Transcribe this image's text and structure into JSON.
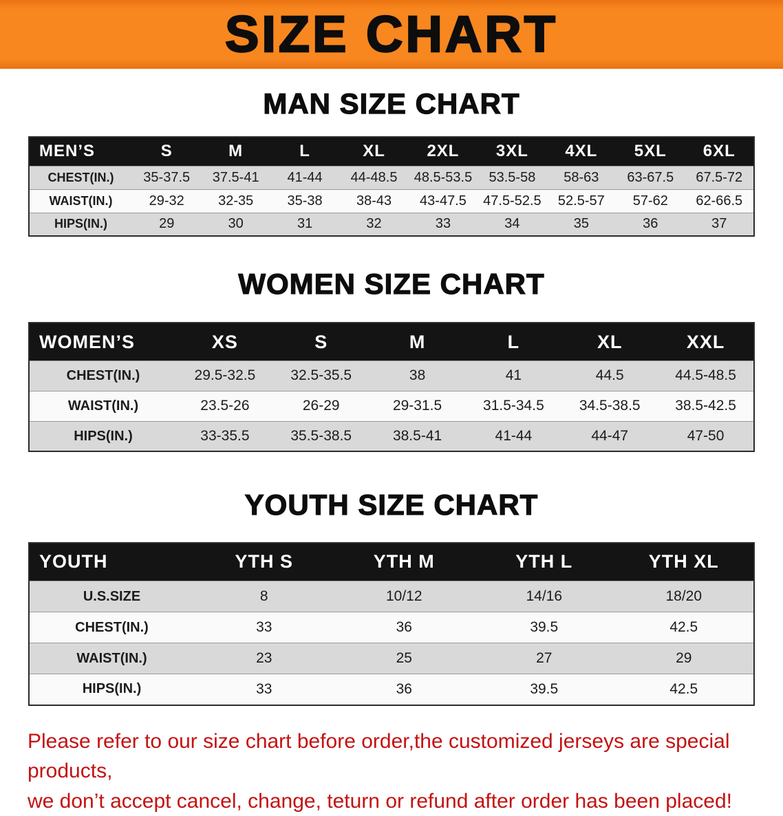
{
  "banner": {
    "title": "SIZE CHART"
  },
  "sections": [
    {
      "id": "men",
      "heading": "MAN SIZE CHART",
      "table": {
        "header": [
          "MEN’S",
          "S",
          "M",
          "L",
          "XL",
          "2XL",
          "3XL",
          "4XL",
          "5XL",
          "6XL"
        ],
        "rows": [
          [
            "CHEST(IN.)",
            "35-37.5",
            "37.5-41",
            "41-44",
            "44-48.5",
            "48.5-53.5",
            "53.5-58",
            "58-63",
            "63-67.5",
            "67.5-72"
          ],
          [
            "WAIST(IN.)",
            "29-32",
            "32-35",
            "35-38",
            "38-43",
            "43-47.5",
            "47.5-52.5",
            "52.5-57",
            "57-62",
            "62-66.5"
          ],
          [
            "HIPS(IN.)",
            "29",
            "30",
            "31",
            "32",
            "33",
            "34",
            "35",
            "36",
            "37"
          ]
        ]
      }
    },
    {
      "id": "women",
      "heading": "WOMEN SIZE CHART",
      "table": {
        "header": [
          "WOMEN’S",
          "XS",
          "S",
          "M",
          "L",
          "XL",
          "XXL"
        ],
        "rows": [
          [
            "CHEST(IN.)",
            "29.5-32.5",
            "32.5-35.5",
            "38",
            "41",
            "44.5",
            "44.5-48.5"
          ],
          [
            "WAIST(IN.)",
            "23.5-26",
            "26-29",
            "29-31.5",
            "31.5-34.5",
            "34.5-38.5",
            "38.5-42.5"
          ],
          [
            "HIPS(IN.)",
            "33-35.5",
            "35.5-38.5",
            "38.5-41",
            "41-44",
            "44-47",
            "47-50"
          ]
        ]
      }
    },
    {
      "id": "youth",
      "heading": "YOUTH SIZE CHART",
      "table": {
        "header": [
          "YOUTH",
          "YTH S",
          "YTH M",
          "YTH L",
          "YTH XL"
        ],
        "rows": [
          [
            "U.S.SIZE",
            "8",
            "10/12",
            "14/16",
            "18/20"
          ],
          [
            "CHEST(IN.)",
            "33",
            "36",
            "39.5",
            "42.5"
          ],
          [
            "WAIST(IN.)",
            "23",
            "25",
            "27",
            "29"
          ],
          [
            "HIPS(IN.)",
            "33",
            "36",
            "39.5",
            "42.5"
          ]
        ]
      }
    }
  ],
  "disclaimer": {
    "lines": [
      "Please refer to our size chart before order,the customized jerseys are special products,",
      "we don’t accept cancel, change, teturn or refund after order has been placed!"
    ]
  },
  "colors": {
    "banner_background": "#F8871F",
    "banner_text": "#0D0D0D",
    "table_header_background": "#141414",
    "table_header_text": "#FFFFFF",
    "row_stripe_gray": "#D9D9D9",
    "row_stripe_white": "#FAFAFA",
    "disclaimer_text": "#C41212"
  }
}
